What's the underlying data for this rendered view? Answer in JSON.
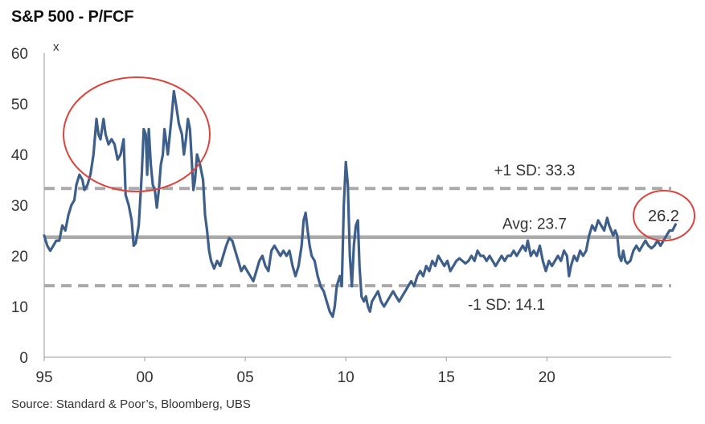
{
  "chart_data": {
    "type": "line",
    "title": "S&P 500 - P/FCF",
    "y_unit": "x",
    "source": "Source: Standard & Poor’s, Bloomberg, UBS",
    "ylim": [
      0,
      60
    ],
    "yticks": [
      "0",
      "10",
      "20",
      "30",
      "40",
      "50",
      "60"
    ],
    "xlim": [
      1995,
      2025
    ],
    "xticks": [
      {
        "value": 1995,
        "label": "95"
      },
      {
        "value": 2000,
        "label": "00"
      },
      {
        "value": 2005,
        "label": "05"
      },
      {
        "value": 2010,
        "label": "10"
      },
      {
        "value": 2015,
        "label": "15"
      },
      {
        "value": 2020,
        "label": "20"
      }
    ],
    "reference_lines": [
      {
        "label": "+1 SD: 33.3",
        "value": 33.3,
        "style": "dashed",
        "color": "#aaaaaa"
      },
      {
        "label": "Avg: 23.7",
        "value": 23.7,
        "style": "solid",
        "color": "#aaaaaa"
      },
      {
        "label": "-1 SD: 14.1",
        "value": 14.1,
        "style": "dashed",
        "color": "#aaaaaa"
      }
    ],
    "latest_label": "26.2",
    "series": [
      {
        "color": "#3d5f8a",
        "points": [
          [
            1995.0,
            24.0
          ],
          [
            1995.15,
            22.0
          ],
          [
            1995.3,
            21.0
          ],
          [
            1995.45,
            22.0
          ],
          [
            1995.6,
            23.0
          ],
          [
            1995.75,
            23.0
          ],
          [
            1995.9,
            26.0
          ],
          [
            1996.05,
            25.0
          ],
          [
            1996.2,
            28.0
          ],
          [
            1996.35,
            30.0
          ],
          [
            1996.5,
            31.0
          ],
          [
            1996.6,
            34.0
          ],
          [
            1996.75,
            36.0
          ],
          [
            1996.9,
            35.0
          ],
          [
            1997.0,
            33.0
          ],
          [
            1997.15,
            34.0
          ],
          [
            1997.3,
            36.0
          ],
          [
            1997.45,
            40.0
          ],
          [
            1997.6,
            47.0
          ],
          [
            1997.7,
            44.0
          ],
          [
            1997.8,
            43.0
          ],
          [
            1997.95,
            47.0
          ],
          [
            1998.05,
            44.0
          ],
          [
            1998.2,
            42.0
          ],
          [
            1998.35,
            43.0
          ],
          [
            1998.5,
            42.0
          ],
          [
            1998.65,
            39.0
          ],
          [
            1998.8,
            40.0
          ],
          [
            1998.95,
            43.0
          ],
          [
            1999.05,
            32.0
          ],
          [
            1999.2,
            30.0
          ],
          [
            1999.35,
            27.0
          ],
          [
            1999.45,
            22.0
          ],
          [
            1999.55,
            22.5
          ],
          [
            1999.7,
            26.0
          ],
          [
            1999.85,
            36.0
          ],
          [
            1999.95,
            45.0
          ],
          [
            2000.05,
            44.0
          ],
          [
            2000.12,
            36.0
          ],
          [
            2000.2,
            45.0
          ],
          [
            2000.3,
            38.0
          ],
          [
            2000.4,
            34.0
          ],
          [
            2000.5,
            33.0
          ],
          [
            2000.6,
            29.5
          ],
          [
            2000.7,
            33.0
          ],
          [
            2000.8,
            38.0
          ],
          [
            2000.9,
            40.0
          ],
          [
            2000.98,
            45.0
          ],
          [
            2001.05,
            43.0
          ],
          [
            2001.15,
            40.0
          ],
          [
            2001.25,
            44.0
          ],
          [
            2001.35,
            48.0
          ],
          [
            2001.45,
            52.5
          ],
          [
            2001.55,
            50.0
          ],
          [
            2001.7,
            46.0
          ],
          [
            2001.85,
            44.0
          ],
          [
            2001.95,
            40.0
          ],
          [
            2002.05,
            43.0
          ],
          [
            2002.15,
            47.0
          ],
          [
            2002.25,
            45.0
          ],
          [
            2002.35,
            38.0
          ],
          [
            2002.42,
            33.0
          ],
          [
            2002.5,
            35.0
          ],
          [
            2002.6,
            40.0
          ],
          [
            2002.75,
            38.0
          ],
          [
            2002.9,
            35.0
          ],
          [
            2003.0,
            28.0
          ],
          [
            2003.1,
            25.0
          ],
          [
            2003.2,
            21.0
          ],
          [
            2003.3,
            19.0
          ],
          [
            2003.45,
            17.5
          ],
          [
            2003.6,
            19.0
          ],
          [
            2003.75,
            18.0
          ],
          [
            2003.9,
            20.0
          ],
          [
            2004.05,
            22.0
          ],
          [
            2004.2,
            23.5
          ],
          [
            2004.35,
            23.0
          ],
          [
            2004.5,
            21.0
          ],
          [
            2004.65,
            19.0
          ],
          [
            2004.8,
            17.0
          ],
          [
            2004.95,
            18.0
          ],
          [
            2005.1,
            17.0
          ],
          [
            2005.25,
            16.0
          ],
          [
            2005.4,
            15.0
          ],
          [
            2005.55,
            17.0
          ],
          [
            2005.7,
            19.0
          ],
          [
            2005.85,
            20.0
          ],
          [
            2006.0,
            18.0
          ],
          [
            2006.15,
            17.0
          ],
          [
            2006.3,
            21.0
          ],
          [
            2006.45,
            22.0
          ],
          [
            2006.6,
            21.0
          ],
          [
            2006.75,
            20.0
          ],
          [
            2006.9,
            21.0
          ],
          [
            2007.05,
            20.0
          ],
          [
            2007.2,
            21.0
          ],
          [
            2007.35,
            18.0
          ],
          [
            2007.5,
            16.0
          ],
          [
            2007.65,
            18.0
          ],
          [
            2007.8,
            22.0
          ],
          [
            2007.9,
            27.0
          ],
          [
            2008.0,
            28.5
          ],
          [
            2008.1,
            25.0
          ],
          [
            2008.2,
            22.0
          ],
          [
            2008.3,
            20.0
          ],
          [
            2008.45,
            19.0
          ],
          [
            2008.6,
            16.0
          ],
          [
            2008.75,
            14.0
          ],
          [
            2008.9,
            13.0
          ],
          [
            2009.05,
            11.0
          ],
          [
            2009.2,
            9.0
          ],
          [
            2009.35,
            8.0
          ],
          [
            2009.45,
            10.0
          ],
          [
            2009.55,
            14.0
          ],
          [
            2009.7,
            16.0
          ],
          [
            2009.8,
            14.0
          ],
          [
            2009.9,
            30.0
          ],
          [
            2010.0,
            38.5
          ],
          [
            2010.1,
            34.0
          ],
          [
            2010.2,
            20.0
          ],
          [
            2010.3,
            14.0
          ],
          [
            2010.4,
            22.0
          ],
          [
            2010.5,
            26.0
          ],
          [
            2010.6,
            27.0
          ],
          [
            2010.68,
            18.0
          ],
          [
            2010.78,
            12.0
          ],
          [
            2010.9,
            11.0
          ],
          [
            2011.0,
            12.0
          ],
          [
            2011.1,
            10.0
          ],
          [
            2011.2,
            9.0
          ],
          [
            2011.3,
            11.0
          ],
          [
            2011.45,
            12.0
          ],
          [
            2011.6,
            13.0
          ],
          [
            2011.75,
            11.0
          ],
          [
            2011.9,
            10.0
          ],
          [
            2012.05,
            11.0
          ],
          [
            2012.2,
            12.0
          ],
          [
            2012.35,
            13.0
          ],
          [
            2012.5,
            12.0
          ],
          [
            2012.65,
            11.0
          ],
          [
            2012.8,
            12.0
          ],
          [
            2012.95,
            13.0
          ],
          [
            2013.1,
            14.0
          ],
          [
            2013.25,
            15.0
          ],
          [
            2013.4,
            14.0
          ],
          [
            2013.55,
            16.0
          ],
          [
            2013.7,
            17.0
          ],
          [
            2013.85,
            16.0
          ],
          [
            2014.0,
            18.0
          ],
          [
            2014.15,
            17.0
          ],
          [
            2014.3,
            19.0
          ],
          [
            2014.45,
            18.0
          ],
          [
            2014.6,
            20.0
          ],
          [
            2014.75,
            19.0
          ],
          [
            2014.9,
            18.0
          ],
          [
            2015.05,
            19.0
          ],
          [
            2015.2,
            17.0
          ],
          [
            2015.35,
            18.0
          ],
          [
            2015.5,
            19.0
          ],
          [
            2015.65,
            19.5
          ],
          [
            2015.8,
            19.0
          ],
          [
            2015.95,
            18.5
          ],
          [
            2016.1,
            19.0
          ],
          [
            2016.25,
            20.0
          ],
          [
            2016.4,
            19.0
          ],
          [
            2016.55,
            21.0
          ],
          [
            2016.7,
            20.0
          ],
          [
            2016.85,
            20.0
          ],
          [
            2017.0,
            19.0
          ],
          [
            2017.15,
            20.0
          ],
          [
            2017.3,
            19.0
          ],
          [
            2017.45,
            18.0
          ],
          [
            2017.6,
            19.0
          ],
          [
            2017.75,
            20.0
          ],
          [
            2017.9,
            19.0
          ],
          [
            2018.05,
            20.0
          ],
          [
            2018.2,
            20.0
          ],
          [
            2018.35,
            21.0
          ],
          [
            2018.5,
            20.0
          ],
          [
            2018.65,
            21.0
          ],
          [
            2018.8,
            22.0
          ],
          [
            2018.95,
            21.0
          ],
          [
            2019.05,
            23.0
          ],
          [
            2019.2,
            20.0
          ],
          [
            2019.35,
            21.0
          ],
          [
            2019.5,
            20.0
          ],
          [
            2019.65,
            22.0
          ],
          [
            2019.8,
            19.0
          ],
          [
            2019.95,
            17.0
          ],
          [
            2020.1,
            19.0
          ],
          [
            2020.25,
            18.0
          ],
          [
            2020.4,
            19.0
          ],
          [
            2020.55,
            20.0
          ],
          [
            2020.7,
            19.0
          ],
          [
            2020.85,
            21.0
          ],
          [
            2021.0,
            20.0
          ],
          [
            2021.1,
            16.0
          ],
          [
            2021.2,
            18.0
          ],
          [
            2021.35,
            20.0
          ],
          [
            2021.5,
            19.0
          ],
          [
            2021.65,
            21.0
          ],
          [
            2021.8,
            20.0
          ],
          [
            2021.95,
            21.0
          ],
          [
            2022.1,
            24.0
          ],
          [
            2022.25,
            26.0
          ],
          [
            2022.4,
            25.0
          ],
          [
            2022.55,
            27.0
          ],
          [
            2022.7,
            26.0
          ],
          [
            2022.85,
            25.0
          ],
          [
            2023.0,
            27.5
          ],
          [
            2023.1,
            26.0
          ],
          [
            2023.2,
            25.0
          ],
          [
            2023.3,
            24.0
          ],
          [
            2023.4,
            25.0
          ],
          [
            2023.5,
            24.0
          ],
          [
            2023.6,
            20.0
          ],
          [
            2023.7,
            19.0
          ],
          [
            2023.8,
            21.0
          ],
          [
            2023.9,
            19.0
          ],
          [
            2024.0,
            18.5
          ],
          [
            2024.15,
            19.0
          ],
          [
            2024.3,
            21.0
          ],
          [
            2024.45,
            22.0
          ],
          [
            2024.6,
            21.0
          ],
          [
            2024.75,
            22.0
          ],
          [
            2024.9,
            23.0
          ],
          [
            2025.05,
            22.0
          ],
          [
            2025.2,
            21.5
          ],
          [
            2025.35,
            22.0
          ],
          [
            2025.5,
            23.0
          ],
          [
            2025.65,
            22.0
          ],
          [
            2025.8,
            23.0
          ],
          [
            2025.95,
            24.0
          ],
          [
            2026.1,
            25.0
          ],
          [
            2026.25,
            25.0
          ],
          [
            2026.4,
            26.2
          ]
        ]
      }
    ],
    "highlights": [
      {
        "shape": "ellipse",
        "color": "#d9453f",
        "around": "1997-2003 peak"
      },
      {
        "shape": "ellipse",
        "color": "#d9453f",
        "around": "latest value"
      }
    ]
  }
}
